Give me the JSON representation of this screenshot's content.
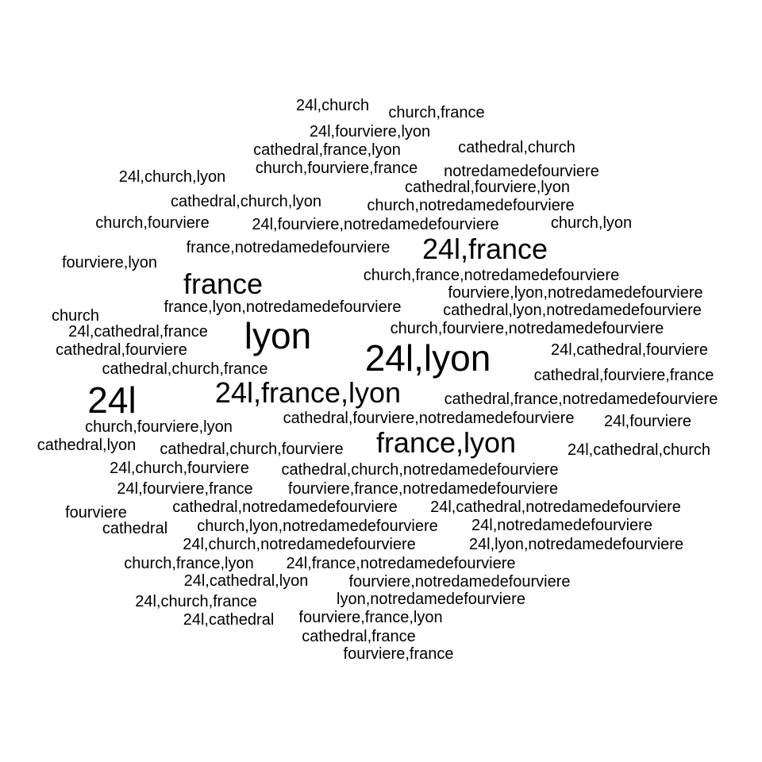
{
  "word_cloud": {
    "text_color": "#000000",
    "background_color": "#ffffff",
    "words": [
      {
        "text": "24l,church",
        "weight": 1
      },
      {
        "text": "church,france",
        "weight": 1
      },
      {
        "text": "24l,fourviere,lyon",
        "weight": 1
      },
      {
        "text": "cathedral,france,lyon",
        "weight": 1
      },
      {
        "text": "cathedral,church",
        "weight": 1
      },
      {
        "text": "church,fourviere,france",
        "weight": 1
      },
      {
        "text": "notredamedefourviere",
        "weight": 1
      },
      {
        "text": "24l,church,lyon",
        "weight": 1
      },
      {
        "text": "cathedral,fourviere,lyon",
        "weight": 1
      },
      {
        "text": "cathedral,church,lyon",
        "weight": 1
      },
      {
        "text": "church,notredamedefourviere",
        "weight": 1
      },
      {
        "text": "church,fourviere",
        "weight": 1
      },
      {
        "text": "24l,fourviere,notredamedefourviere",
        "weight": 1
      },
      {
        "text": "church,lyon",
        "weight": 1
      },
      {
        "text": "france,notredamedefourviere",
        "weight": 1
      },
      {
        "text": "24l,france",
        "weight": 2
      },
      {
        "text": "fourviere,lyon",
        "weight": 1
      },
      {
        "text": "france",
        "weight": 2
      },
      {
        "text": "church,france,notredamedefourviere",
        "weight": 1
      },
      {
        "text": "fourviere,lyon,notredamedefourviere",
        "weight": 1
      },
      {
        "text": "france,lyon,notredamedefourviere",
        "weight": 1
      },
      {
        "text": "cathedral,lyon,notredamedefourviere",
        "weight": 1
      },
      {
        "text": "church",
        "weight": 1
      },
      {
        "text": "24l,cathedral,france",
        "weight": 1
      },
      {
        "text": "lyon",
        "weight": 3
      },
      {
        "text": "church,fourviere,notredamedefourviere",
        "weight": 1
      },
      {
        "text": "cathedral,fourviere",
        "weight": 1
      },
      {
        "text": "24l,lyon",
        "weight": 3
      },
      {
        "text": "24l,cathedral,fourviere",
        "weight": 1
      },
      {
        "text": "cathedral,church,france",
        "weight": 1
      },
      {
        "text": "cathedral,fourviere,france",
        "weight": 1
      },
      {
        "text": "24l",
        "weight": 3
      },
      {
        "text": "24l,france,lyon",
        "weight": 2
      },
      {
        "text": "cathedral,france,notredamedefourviere",
        "weight": 1
      },
      {
        "text": "cathedral,fourviere,notredamedefourviere",
        "weight": 1
      },
      {
        "text": "24l,fourviere",
        "weight": 1
      },
      {
        "text": "church,fourviere,lyon",
        "weight": 1
      },
      {
        "text": "cathedral,lyon",
        "weight": 1
      },
      {
        "text": "cathedral,church,fourviere",
        "weight": 1
      },
      {
        "text": "france,lyon",
        "weight": 2
      },
      {
        "text": "24l,cathedral,church",
        "weight": 1
      },
      {
        "text": "24l,church,fourviere",
        "weight": 1
      },
      {
        "text": "cathedral,church,notredamedefourviere",
        "weight": 1
      },
      {
        "text": "24l,fourviere,france",
        "weight": 1
      },
      {
        "text": "fourviere,france,notredamedefourviere",
        "weight": 1
      },
      {
        "text": "fourviere",
        "weight": 1
      },
      {
        "text": "cathedral,notredamedefourviere",
        "weight": 1
      },
      {
        "text": "24l,cathedral,notredamedefourviere",
        "weight": 1
      },
      {
        "text": "cathedral",
        "weight": 1
      },
      {
        "text": "church,lyon,notredamedefourviere",
        "weight": 1
      },
      {
        "text": "24l,notredamedefourviere",
        "weight": 1
      },
      {
        "text": "24l,church,notredamedefourviere",
        "weight": 1
      },
      {
        "text": "24l,lyon,notredamedefourviere",
        "weight": 1
      },
      {
        "text": "church,france,lyon",
        "weight": 1
      },
      {
        "text": "24l,france,notredamedefourviere",
        "weight": 1
      },
      {
        "text": "24l,cathedral,lyon",
        "weight": 1
      },
      {
        "text": "fourviere,notredamedefourviere",
        "weight": 1
      },
      {
        "text": "24l,church,france",
        "weight": 1
      },
      {
        "text": "lyon,notredamedefourviere",
        "weight": 1
      },
      {
        "text": "24l,cathedral",
        "weight": 1
      },
      {
        "text": "fourviere,france,lyon",
        "weight": 1
      },
      {
        "text": "cathedral,france",
        "weight": 1
      },
      {
        "text": "fourviere,france",
        "weight": 1
      }
    ]
  }
}
